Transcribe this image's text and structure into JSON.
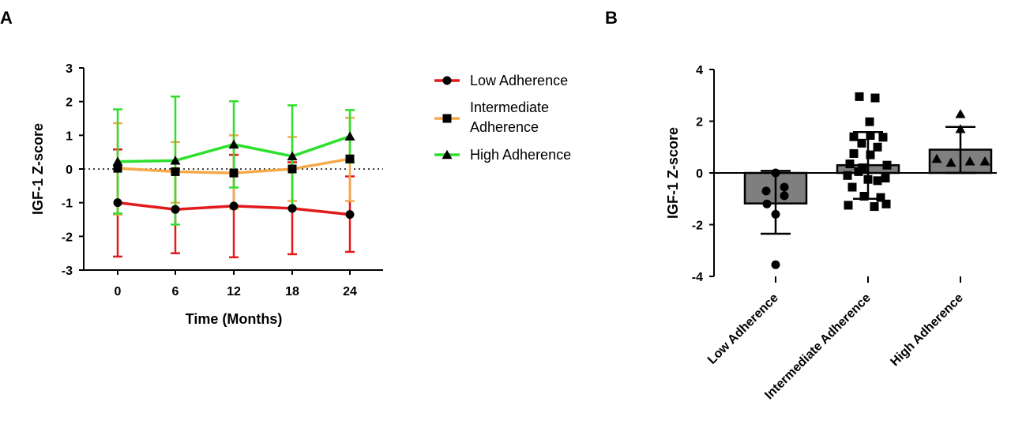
{
  "panel_labels": {
    "a": "A",
    "b": "B"
  },
  "chart_data": [
    {
      "type": "line",
      "panel": "A",
      "xlabel": "Time (Months)",
      "ylabel": "IGF-1 Z-score",
      "x": [
        0,
        6,
        12,
        18,
        24
      ],
      "x_tick_labels": [
        "0",
        "6",
        "12",
        "18",
        "24"
      ],
      "ylim": [
        -3,
        3
      ],
      "y_ticks": [
        3,
        2,
        1,
        0,
        -1,
        -2,
        -3
      ],
      "y_tick_labels": [
        "3",
        "2",
        "1",
        "0",
        "-1",
        "-2",
        "-3"
      ],
      "reference_line": 0,
      "series": [
        {
          "name": "Low Adherence",
          "color": "#e31a1c",
          "marker": "circle",
          "values": [
            -1.0,
            -1.2,
            -1.1,
            -1.17,
            -1.35
          ],
          "err_upper": [
            0.58,
            0.0,
            0.42,
            0.2,
            -0.22
          ],
          "err_lower": [
            -2.6,
            -2.5,
            -2.62,
            -2.53,
            -2.46
          ]
        },
        {
          "name": "Intermediate\nAdherence",
          "color": "#f5a94a",
          "marker": "square",
          "values": [
            0.02,
            -0.08,
            -0.12,
            0.0,
            0.3
          ],
          "err_upper": [
            1.36,
            0.8,
            1.0,
            0.95,
            1.52
          ],
          "err_lower": [
            -1.35,
            -1.0,
            -1.18,
            -0.95,
            -0.95
          ]
        },
        {
          "name": "High Adherence",
          "color": "#2ee02e",
          "marker": "triangle",
          "values": [
            0.22,
            0.25,
            0.73,
            0.38,
            0.97
          ],
          "err_upper": [
            1.77,
            2.15,
            2.01,
            1.89,
            1.75
          ],
          "err_lower": [
            -1.32,
            -1.65,
            -0.55,
            -1.15,
            0.19
          ]
        }
      ],
      "legend": [
        "Low Adherence",
        "Intermediate",
        "Adherence",
        "High Adherence"
      ]
    },
    {
      "type": "bar",
      "panel": "B",
      "ylabel": "IGF-1 Z-score",
      "categories": [
        "Low Adherence",
        "Intermediate Adherence",
        "High Adherence"
      ],
      "values": [
        -1.18,
        0.3,
        0.9
      ],
      "err_upper": [
        0.08,
        1.58,
        1.78
      ],
      "err_lower": [
        -2.35,
        -1.0,
        0.0
      ],
      "ylim": [
        -4,
        4
      ],
      "y_ticks": [
        4,
        2,
        0,
        -2,
        -4
      ],
      "y_tick_labels": [
        "4",
        "2",
        "0",
        "-2",
        "-4"
      ],
      "bar_color": "#7f7f7f",
      "points": [
        {
          "marker": "circle",
          "values": [
            0.0,
            -0.7,
            -0.55,
            -1.2,
            -0.88,
            -1.6,
            -3.55
          ],
          "offsets": [
            0,
            -12,
            11,
            -11,
            11,
            0,
            0
          ]
        },
        {
          "marker": "square",
          "values": [
            2.95,
            2.9,
            1.98,
            1.4,
            1.45,
            1.38,
            1.15,
            1.0,
            0.75,
            0.7,
            0.35,
            0.3,
            0.2,
            0.05,
            -0.1,
            -0.2,
            -0.25,
            -0.3,
            -0.55,
            -0.9,
            -0.95,
            -1.25,
            -1.3,
            -1.2
          ],
          "offsets": [
            -11,
            9,
            2,
            -18,
            3,
            19,
            -8,
            12,
            -18,
            3,
            -23,
            24,
            -7,
            -12,
            -26,
            22,
            0,
            12,
            -20,
            -5,
            16,
            -25,
            8,
            23
          ]
        },
        {
          "marker": "triangle",
          "values": [
            2.28,
            1.7,
            0.55,
            0.45,
            0.4,
            0.45
          ],
          "offsets": [
            0,
            0,
            -30,
            12,
            -12,
            31
          ]
        }
      ]
    }
  ]
}
